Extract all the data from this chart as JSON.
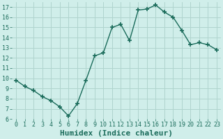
{
  "x": [
    0,
    1,
    2,
    3,
    4,
    5,
    6,
    7,
    8,
    9,
    10,
    11,
    12,
    13,
    14,
    15,
    16,
    17,
    18,
    19,
    20,
    21,
    22,
    23
  ],
  "y": [
    9.8,
    9.2,
    8.8,
    8.2,
    7.8,
    7.2,
    6.3,
    7.5,
    9.8,
    12.2,
    12.5,
    15.0,
    15.3,
    13.7,
    16.7,
    16.8,
    17.2,
    16.5,
    16.0,
    14.7,
    13.3,
    13.5,
    13.3,
    12.8
  ],
  "line_color": "#1a6b5a",
  "marker": "+",
  "marker_size": 4,
  "bg_color": "#d0eeea",
  "grid_color": "#b0d4ce",
  "xlabel": "Humidex (Indice chaleur)",
  "xlim": [
    -0.5,
    23.5
  ],
  "ylim": [
    6,
    17.5
  ],
  "yticks": [
    6,
    7,
    8,
    9,
    10,
    11,
    12,
    13,
    14,
    15,
    16,
    17
  ],
  "xticks": [
    0,
    1,
    2,
    3,
    4,
    5,
    6,
    7,
    8,
    9,
    10,
    11,
    12,
    13,
    14,
    15,
    16,
    17,
    18,
    19,
    20,
    21,
    22,
    23
  ],
  "tick_fontsize": 6,
  "xlabel_fontsize": 8,
  "xlabel_fontweight": "bold",
  "linewidth": 1.0
}
